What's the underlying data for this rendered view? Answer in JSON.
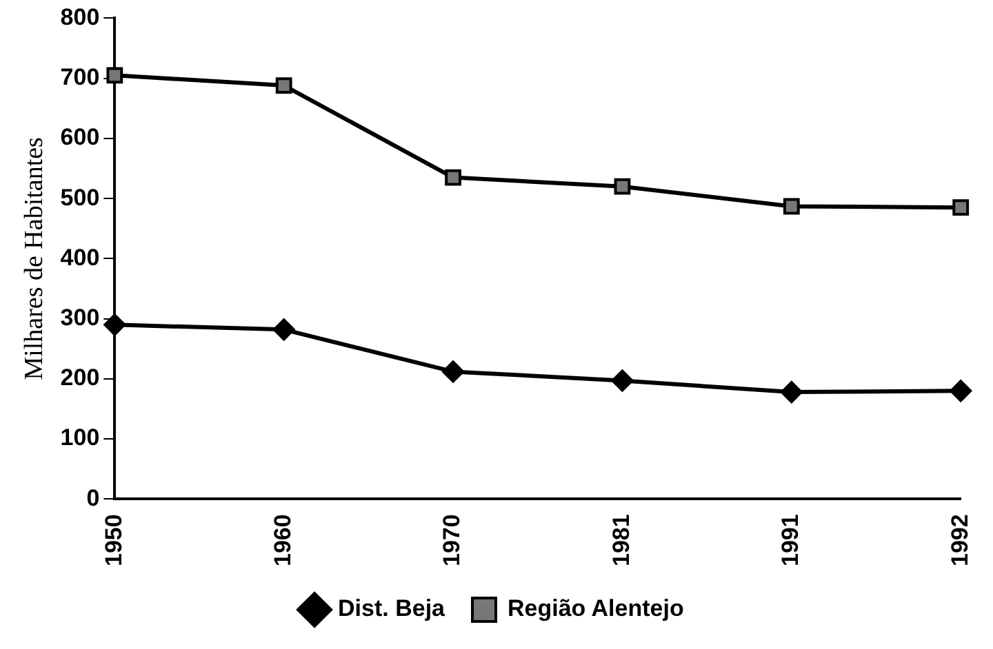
{
  "chart_data": {
    "type": "line",
    "ylabel": "Milhares de Habitantes",
    "categories": [
      "1950",
      "1960",
      "1970",
      "1981",
      "1991",
      "1992"
    ],
    "series": [
      {
        "name": "Dist. Beja",
        "color": "#000000",
        "marker": "diamond",
        "values": [
          290,
          282,
          212,
          197,
          178,
          180
        ]
      },
      {
        "name": "Região Alentejo",
        "color": "#000000",
        "marker": "square",
        "values": [
          705,
          688,
          535,
          520,
          487,
          485
        ]
      }
    ],
    "ylim": [
      0,
      800
    ],
    "yticks": [
      0,
      100,
      200,
      300,
      400,
      500,
      600,
      700,
      800
    ],
    "grid": false,
    "legend": "bottom",
    "line_style": "solid"
  }
}
